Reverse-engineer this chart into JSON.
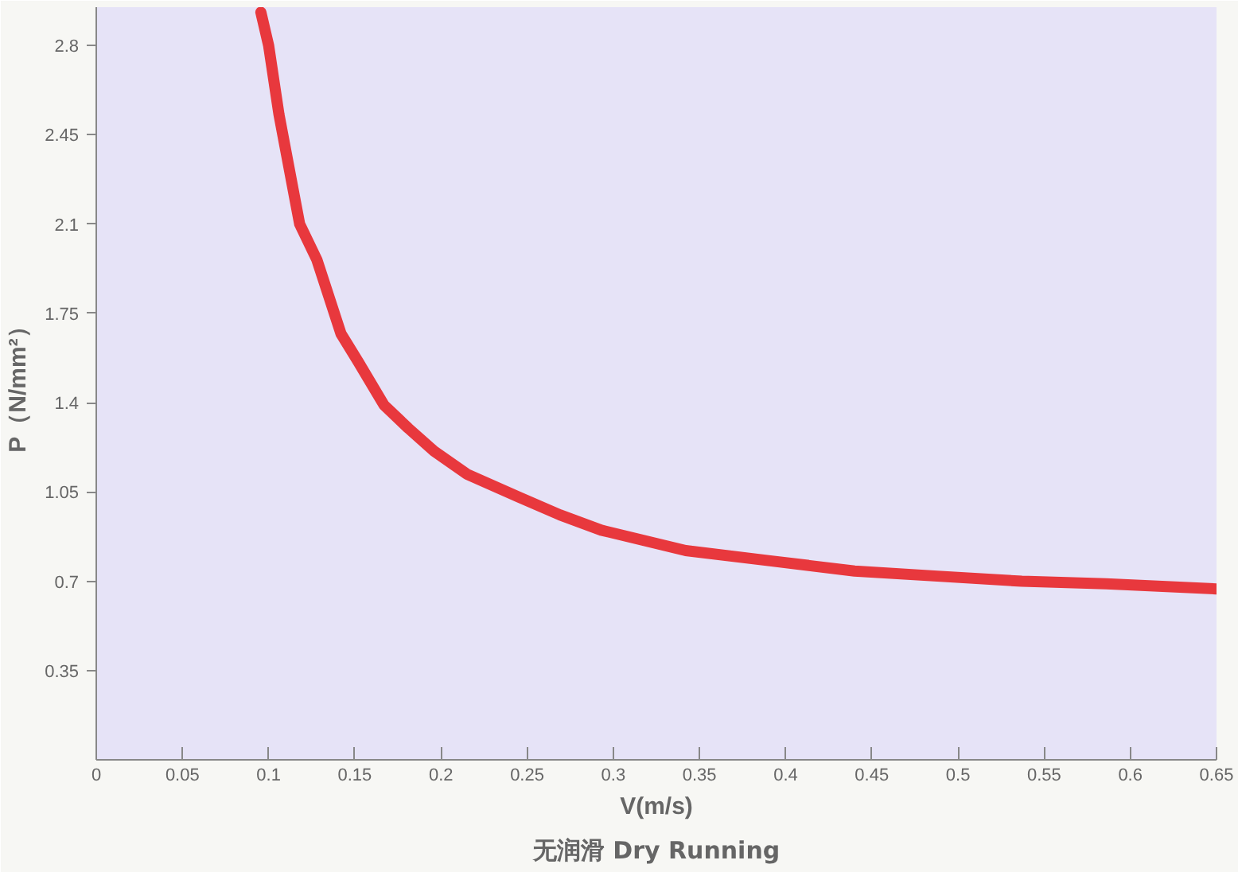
{
  "chart_data": {
    "type": "line",
    "title": "无润滑 Dry Running",
    "xlabel": "V(m/s)",
    "ylabel": "P（N/mm²）",
    "x": [
      0.0955,
      0.1,
      0.106,
      0.118,
      0.128,
      0.142,
      0.152,
      0.167,
      0.181,
      0.196,
      0.215,
      0.245,
      0.269,
      0.293,
      0.342,
      0.391,
      0.44,
      0.488,
      0.537,
      0.586,
      0.65
    ],
    "series": [
      {
        "color": "#e8383d",
        "values": [
          2.93,
          2.8,
          2.53,
          2.1,
          1.96,
          1.67,
          1.56,
          1.39,
          1.3,
          1.21,
          1.12,
          1.03,
          0.96,
          0.9,
          0.82,
          0.78,
          0.74,
          0.72,
          0.7,
          0.69,
          0.67
        ]
      }
    ],
    "xlim": [
      0,
      0.65
    ],
    "ylim": [
      0,
      2.95
    ],
    "xticks": [
      {
        "value": 0,
        "label": "0"
      },
      0.05,
      0.1,
      0.15,
      0.2,
      0.25,
      0.3,
      0.35,
      0.4,
      0.45,
      0.5,
      0.55,
      0.6,
      0.65
    ],
    "yticks": [
      0.35,
      0.7,
      1.05,
      1.4,
      1.75,
      2.1,
      2.45,
      2.8
    ],
    "grid": false,
    "marker": "none",
    "line_style": "solid"
  }
}
